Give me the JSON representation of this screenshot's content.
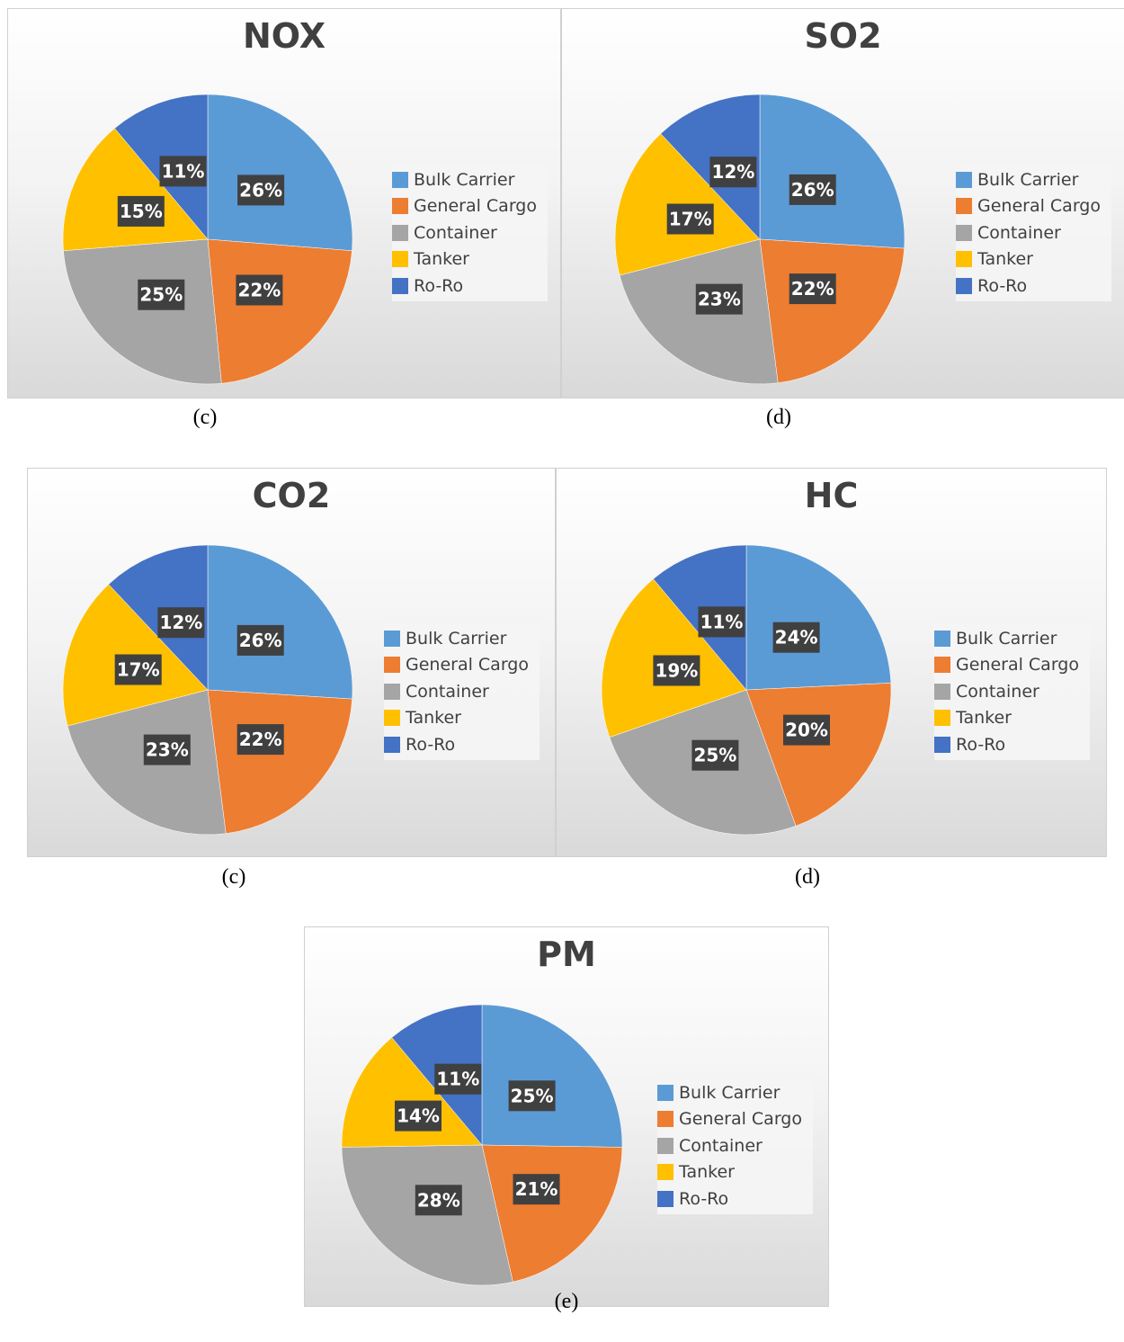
{
  "legend_labels": [
    "Bulk Carrier",
    "General Cargo",
    "Container",
    "Tanker",
    "Ro-Ro"
  ],
  "colors": {
    "bulk_carrier": "#5b9bd5",
    "general_cargo": "#ed7d31",
    "container": "#a5a5a5",
    "tanker": "#ffc000",
    "ro_ro": "#4472c4",
    "label_box": "#404040"
  },
  "captions": [
    "(c)",
    "(d)",
    "(c)",
    "(d)",
    "(e)"
  ],
  "chart_data": [
    {
      "type": "pie",
      "title": "NOX",
      "categories": [
        "Bulk Carrier",
        "General Cargo",
        "Container",
        "Tanker",
        "Ro-Ro"
      ],
      "values": [
        26,
        22,
        25,
        15,
        11
      ],
      "labels": [
        "26%",
        "22%",
        "25%",
        "15%",
        "11%"
      ],
      "legend_position": "right"
    },
    {
      "type": "pie",
      "title": "SO2",
      "categories": [
        "Bulk Carrier",
        "General Cargo",
        "Container",
        "Tanker",
        "Ro-Ro"
      ],
      "values": [
        26,
        22,
        23,
        17,
        12
      ],
      "labels": [
        "26%",
        "22%",
        "23%",
        "17%",
        "12%"
      ],
      "legend_position": "right"
    },
    {
      "type": "pie",
      "title": "CO2",
      "categories": [
        "Bulk Carrier",
        "General Cargo",
        "Container",
        "Tanker",
        "Ro-Ro"
      ],
      "values": [
        26,
        22,
        23,
        17,
        12
      ],
      "labels": [
        "26%",
        "22%",
        "23%",
        "17%",
        "12%"
      ],
      "legend_position": "right"
    },
    {
      "type": "pie",
      "title": "HC",
      "categories": [
        "Bulk Carrier",
        "General Cargo",
        "Container",
        "Tanker",
        "Ro-Ro"
      ],
      "values": [
        24,
        20,
        25,
        19,
        11
      ],
      "labels": [
        "24%",
        "20%",
        "25%",
        "19%",
        "11%"
      ],
      "legend_position": "right"
    },
    {
      "type": "pie",
      "title": "PM",
      "categories": [
        "Bulk Carrier",
        "General Cargo",
        "Container",
        "Tanker",
        "Ro-Ro"
      ],
      "values": [
        25,
        21,
        28,
        14,
        11
      ],
      "labels": [
        "25%",
        "21%",
        "28%",
        "14%",
        "11%"
      ],
      "legend_position": "right"
    }
  ]
}
